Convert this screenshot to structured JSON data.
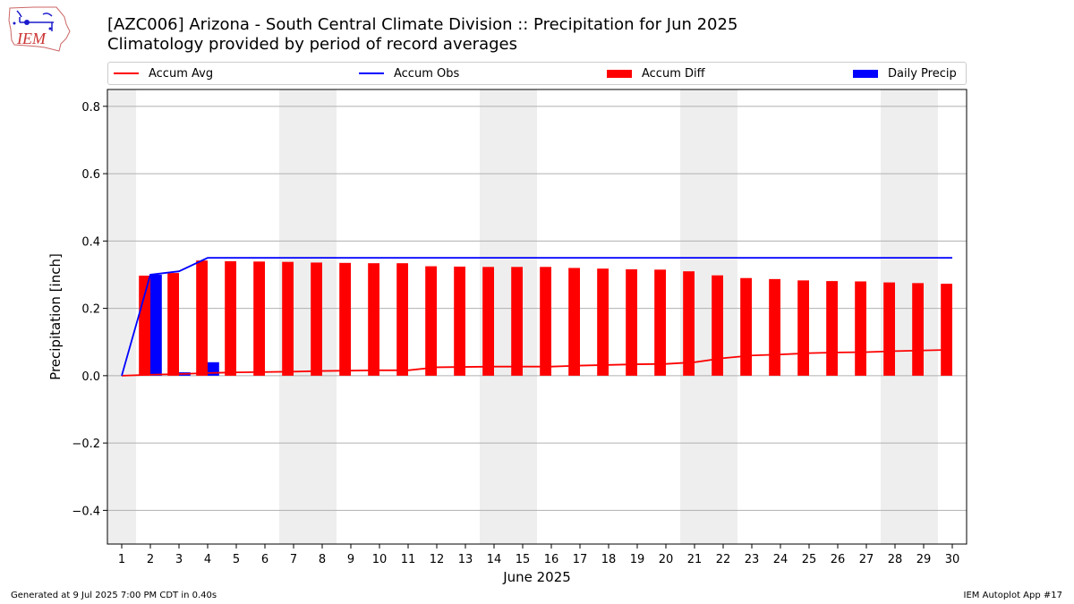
{
  "header": {
    "logo_text": "IEM",
    "title_line1": "[AZC006] Arizona - South Central Climate Division :: Precipitation for Jun 2025",
    "title_line2": "Climatology provided by period of record averages"
  },
  "legend": {
    "accum_avg": "Accum Avg",
    "accum_obs": "Accum Obs",
    "accum_diff": "Accum Diff",
    "daily_precip": "Daily Precip"
  },
  "colors": {
    "accum_avg": "#ff0000",
    "accum_obs": "#0000ff",
    "accum_diff": "#ff0000",
    "daily_precip": "#0000ff",
    "weekend_shade": "#eeeeee",
    "grid": "#b0b0b0"
  },
  "chart_data": {
    "type": "bar",
    "xlabel": "June 2025",
    "ylabel": "Precipitation [inch]",
    "x": [
      1,
      2,
      3,
      4,
      5,
      6,
      7,
      8,
      9,
      10,
      11,
      12,
      13,
      14,
      15,
      16,
      17,
      18,
      19,
      20,
      21,
      22,
      23,
      24,
      25,
      26,
      27,
      28,
      29,
      30
    ],
    "xlim": [
      0.5,
      30.5
    ],
    "ylim": [
      -0.5,
      0.85
    ],
    "yticks": [
      -0.4,
      -0.2,
      0.0,
      0.2,
      0.4,
      0.6,
      0.8
    ],
    "ytick_labels": [
      "−0.4",
      "−0.2",
      "0.0",
      "0.2",
      "0.4",
      "0.6",
      "0.8"
    ],
    "grid": "horizontal",
    "legend_placement": "top, above plot",
    "weekend_days": [
      1,
      7,
      8,
      14,
      15,
      21,
      22,
      28,
      29
    ],
    "series": [
      {
        "name": "Accum Avg",
        "type": "line",
        "values": [
          0.0,
          0.003,
          0.005,
          0.008,
          0.01,
          0.011,
          0.012,
          0.014,
          0.015,
          0.016,
          0.016,
          0.025,
          0.026,
          0.027,
          0.027,
          0.027,
          0.03,
          0.032,
          0.034,
          0.035,
          0.04,
          0.052,
          0.06,
          0.063,
          0.067,
          0.069,
          0.07,
          0.073,
          0.075,
          0.077
        ]
      },
      {
        "name": "Accum Obs",
        "type": "line",
        "values": [
          0.0,
          0.3,
          0.31,
          0.35,
          0.35,
          0.35,
          0.35,
          0.35,
          0.35,
          0.35,
          0.35,
          0.35,
          0.35,
          0.35,
          0.35,
          0.35,
          0.35,
          0.35,
          0.35,
          0.35,
          0.35,
          0.35,
          0.35,
          0.35,
          0.35,
          0.35,
          0.35,
          0.35,
          0.35,
          0.35
        ]
      },
      {
        "name": "Accum Diff",
        "type": "bar",
        "values": [
          0.0,
          0.297,
          0.305,
          0.342,
          0.34,
          0.339,
          0.338,
          0.336,
          0.335,
          0.334,
          0.334,
          0.325,
          0.324,
          0.323,
          0.323,
          0.323,
          0.32,
          0.318,
          0.316,
          0.315,
          0.31,
          0.298,
          0.29,
          0.287,
          0.283,
          0.281,
          0.28,
          0.277,
          0.275,
          0.273
        ]
      },
      {
        "name": "Daily Precip",
        "type": "bar",
        "values": [
          0.0,
          0.3,
          0.01,
          0.04,
          0.0,
          0.0,
          0.0,
          0.0,
          0.0,
          0.0,
          0.0,
          0.0,
          0.0,
          0.0,
          0.0,
          0.0,
          0.0,
          0.0,
          0.0,
          0.0,
          0.0,
          0.0,
          0.0,
          0.0,
          0.0,
          0.0,
          0.0,
          0.0,
          0.0,
          0.0
        ]
      }
    ]
  },
  "footer": {
    "left": "Generated at 9 Jul 2025 7:00 PM CDT in 0.40s",
    "right": "IEM Autoplot App #17"
  }
}
